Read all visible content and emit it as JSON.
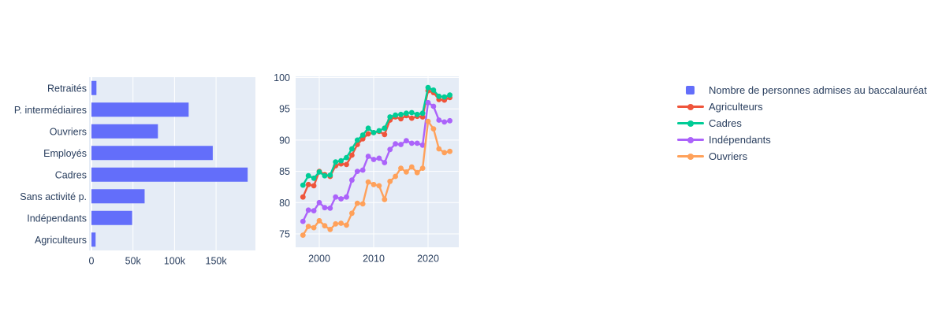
{
  "figure": {
    "background": "#ffffff",
    "plot_bgcolor": "#e5ecf6",
    "grid_color": "#ffffff",
    "text_color": "#2a3f5f",
    "accent_bar_color": "#636efa"
  },
  "chart_data": [
    {
      "type": "bar",
      "orientation": "horizontal",
      "name": "Nombre de personnes admises au baccalauréat",
      "color": "#636efa",
      "categories": [
        "Retraités",
        "P. intermédiaires",
        "Ouvriers",
        "Employés",
        "Cadres",
        "Sans activité p.",
        "Indépendants",
        "Agriculteurs"
      ],
      "values": [
        6000,
        117000,
        80000,
        146000,
        188000,
        64000,
        49000,
        5000
      ],
      "x_ticks": [
        {
          "v": 0,
          "label": "0"
        },
        {
          "v": 50000,
          "label": "50k"
        },
        {
          "v": 100000,
          "label": "100k"
        },
        {
          "v": 150000,
          "label": "150k"
        }
      ],
      "xlim": [
        0,
        197000
      ],
      "grid": true,
      "title": "",
      "xlabel": "",
      "ylabel": ""
    },
    {
      "type": "line",
      "x": [
        1997,
        1998,
        1999,
        2000,
        2001,
        2002,
        2003,
        2004,
        2005,
        2006,
        2007,
        2008,
        2009,
        2010,
        2011,
        2012,
        2013,
        2014,
        2015,
        2016,
        2017,
        2018,
        2019,
        2020,
        2021,
        2022,
        2023,
        2024
      ],
      "series": [
        {
          "name": "Agriculteurs",
          "color": "#EF553B",
          "values": [
            80.9,
            82.9,
            82.7,
            85.0,
            84.5,
            84.2,
            85.9,
            86.2,
            86.1,
            87.6,
            89.3,
            90.2,
            91.0,
            91.2,
            91.4,
            90.9,
            93.2,
            93.7,
            93.4,
            93.9,
            93.5,
            93.8,
            93.7,
            97.9,
            97.6,
            96.5,
            96.4,
            96.8
          ]
        },
        {
          "name": "Cadres",
          "color": "#00CC96",
          "values": [
            82.8,
            84.3,
            83.9,
            84.9,
            84.3,
            84.4,
            86.5,
            86.7,
            87.2,
            88.6,
            90.0,
            90.8,
            91.9,
            91.2,
            91.5,
            91.9,
            93.7,
            94.0,
            94.1,
            94.3,
            94.4,
            94.1,
            94.3,
            98.4,
            98.0,
            97.0,
            96.9,
            97.2
          ]
        },
        {
          "name": "Indépendants",
          "color": "#AB63FA",
          "values": [
            77.0,
            78.8,
            78.7,
            80.0,
            79.2,
            79.1,
            80.9,
            80.6,
            80.9,
            83.6,
            85.0,
            85.2,
            87.4,
            86.9,
            87.1,
            86.4,
            88.5,
            89.4,
            89.3,
            89.9,
            89.5,
            89.5,
            89.2,
            96.0,
            95.4,
            93.2,
            92.9,
            93.1
          ]
        },
        {
          "name": "Ouvriers",
          "color": "#FFA15A",
          "values": [
            74.8,
            76.2,
            76.0,
            77.1,
            76.3,
            75.7,
            76.6,
            76.7,
            76.4,
            78.3,
            79.9,
            79.8,
            83.3,
            82.9,
            82.7,
            80.5,
            83.4,
            84.2,
            85.5,
            84.9,
            85.7,
            84.8,
            85.5,
            93.0,
            91.8,
            88.6,
            88.0,
            88.2
          ]
        }
      ],
      "x_ticks": [
        2000,
        2010,
        2020
      ],
      "x_tick_labels": [
        "2000",
        "2010",
        "2020"
      ],
      "y_ticks": [
        75,
        80,
        85,
        90,
        95,
        100
      ],
      "y_tick_labels": [
        "75",
        "80",
        "85",
        "90",
        "95",
        "100"
      ],
      "ylim": [
        72.7,
        100.4
      ],
      "xlim": [
        1995.7,
        2025.8
      ],
      "grid": true,
      "title": "",
      "xlabel": "",
      "ylabel": ""
    }
  ],
  "legend": {
    "items": [
      {
        "label": "Nombre de personnes admises au baccalauréat",
        "swatch": "square",
        "color": "#636efa"
      },
      {
        "label": "Agriculteurs",
        "swatch": "line-dot",
        "color": "#EF553B"
      },
      {
        "label": "Cadres",
        "swatch": "line-dot",
        "color": "#00CC96"
      },
      {
        "label": "Indépendants",
        "swatch": "line-dot",
        "color": "#AB63FA"
      },
      {
        "label": "Ouvriers",
        "swatch": "line-dot",
        "color": "#FFA15A"
      }
    ]
  }
}
